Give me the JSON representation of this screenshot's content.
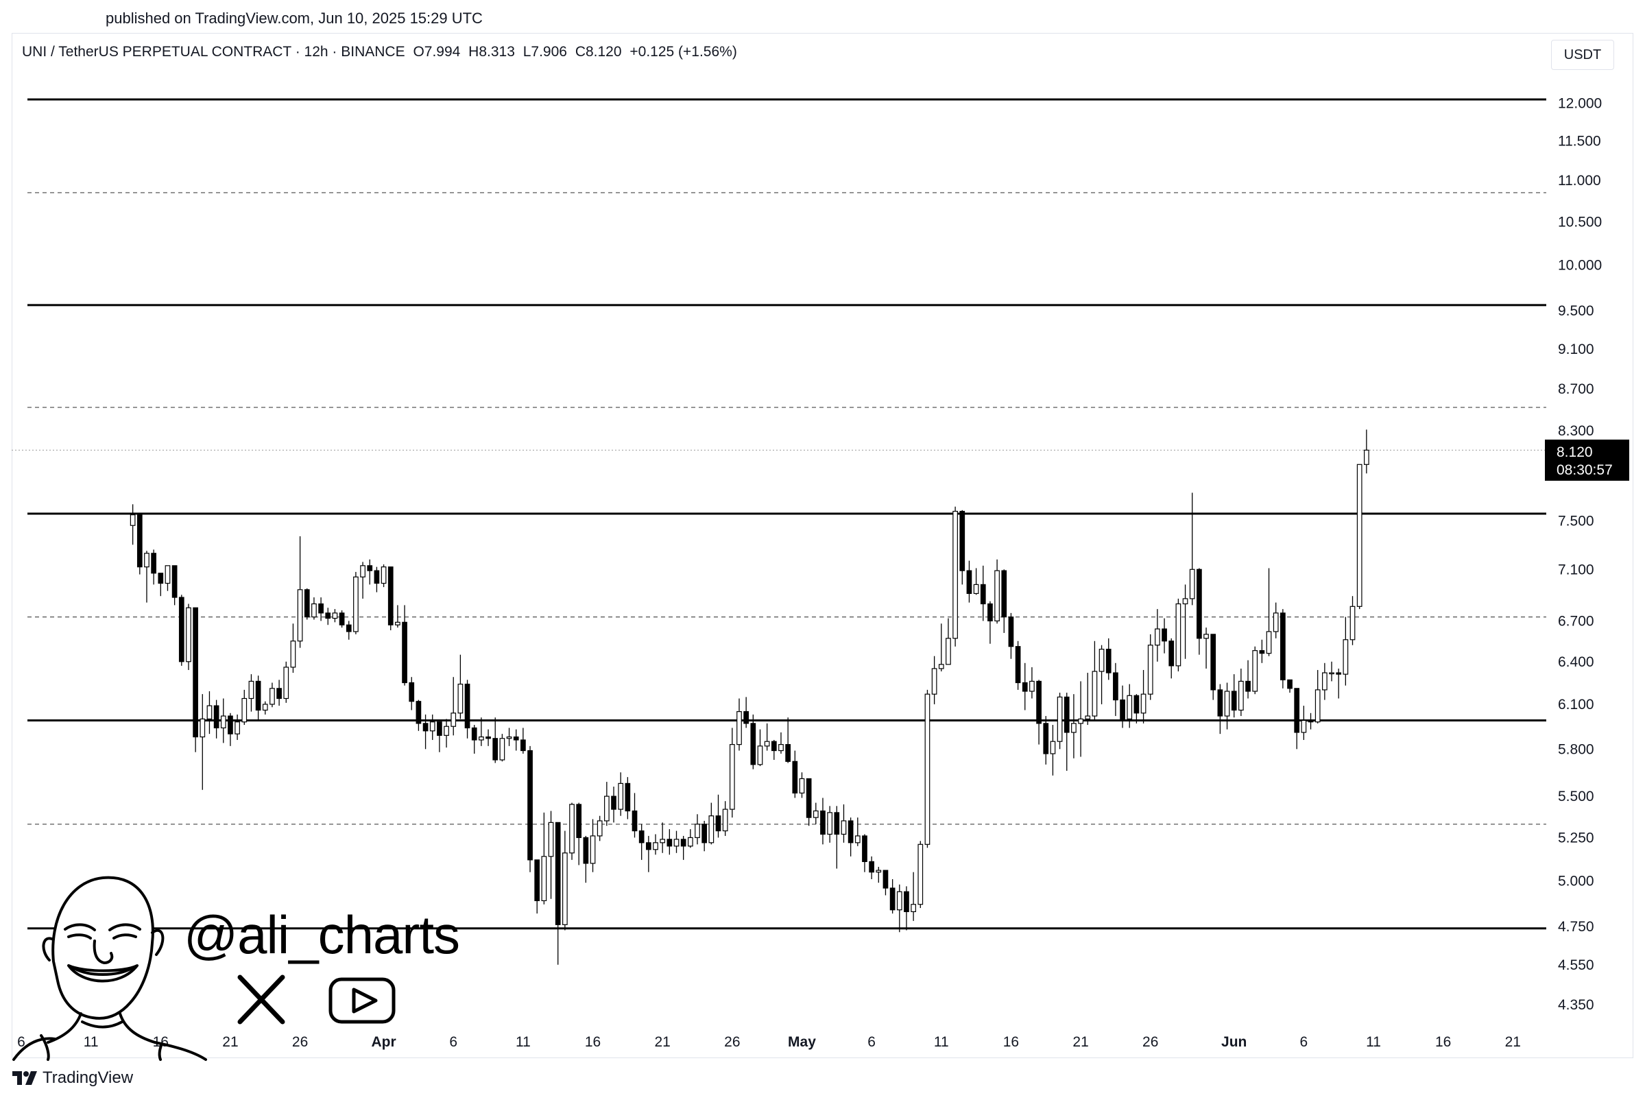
{
  "published": "published on TradingView.com, Jun 10, 2025 15:29 UTC",
  "legend": {
    "symbol": "UNI / TetherUS PERPETUAL CONTRACT · 12h · BINANCE",
    "open": "O7.994",
    "high": "H8.313",
    "low": "L7.906",
    "close": "C8.120",
    "change": "+0.125 (+1.56%)"
  },
  "currency": "USDT",
  "price_label": {
    "price": "8.120",
    "countdown": "08:30:57"
  },
  "watermark": {
    "handle": "@ali_charts",
    "icons": [
      "x-logo-icon",
      "youtube-icon"
    ]
  },
  "footer": {
    "brand": "TradingView",
    "icon": "tradingview-logo-icon"
  },
  "colors": {
    "line": "#000000",
    "background": "#ffffff",
    "grid_dashed": "#777777"
  },
  "chart_data": {
    "type": "candlestick",
    "y_ticks": [
      "12.000",
      "11.500",
      "11.000",
      "10.500",
      "10.000",
      "9.500",
      "9.100",
      "8.700",
      "8.300",
      "7.500",
      "7.100",
      "6.700",
      "6.400",
      "6.100",
      "5.800",
      "5.500",
      "5.250",
      "5.000",
      "4.750",
      "4.550",
      "4.350"
    ],
    "y_scale": "log",
    "x_ticks": [
      {
        "label": "6",
        "bold": false
      },
      {
        "label": "11",
        "bold": false
      },
      {
        "label": "16",
        "bold": false
      },
      {
        "label": "21",
        "bold": false
      },
      {
        "label": "26",
        "bold": false
      },
      {
        "label": "Apr",
        "bold": true
      },
      {
        "label": "6",
        "bold": false
      },
      {
        "label": "11",
        "bold": false
      },
      {
        "label": "16",
        "bold": false
      },
      {
        "label": "21",
        "bold": false
      },
      {
        "label": "26",
        "bold": false
      },
      {
        "label": "May",
        "bold": true
      },
      {
        "label": "6",
        "bold": false
      },
      {
        "label": "11",
        "bold": false
      },
      {
        "label": "16",
        "bold": false
      },
      {
        "label": "21",
        "bold": false
      },
      {
        "label": "26",
        "bold": false
      },
      {
        "label": "Jun",
        "bold": true
      },
      {
        "label": "6",
        "bold": false
      },
      {
        "label": "11",
        "bold": false
      },
      {
        "label": "16",
        "bold": false
      },
      {
        "label": "21",
        "bold": false
      }
    ],
    "first_day": "2025-03-06",
    "last_candle": "2025-06-10 12:00",
    "horizontal_levels": [
      {
        "price": 12.05,
        "style": "solid"
      },
      {
        "price": 10.85,
        "style": "dashed"
      },
      {
        "price": 9.56,
        "style": "solid"
      },
      {
        "price": 8.52,
        "style": "dashed"
      },
      {
        "price": 8.12,
        "style": "dotted"
      },
      {
        "price": 7.56,
        "style": "solid"
      },
      {
        "price": 6.73,
        "style": "dashed"
      },
      {
        "price": 5.99,
        "style": "solid"
      },
      {
        "price": 5.33,
        "style": "dashed"
      },
      {
        "price": 4.74,
        "style": "solid"
      }
    ],
    "candles": [
      [
        7.46,
        7.55,
        7.64,
        7.3
      ],
      [
        7.55,
        7.12,
        7.55,
        7.06
      ],
      [
        7.12,
        7.23,
        7.25,
        6.84
      ],
      [
        7.23,
        7.07,
        7.26,
        6.98
      ],
      [
        7.07,
        6.99,
        7.07,
        6.89
      ],
      [
        6.99,
        7.13,
        7.13,
        6.93
      ],
      [
        7.13,
        6.88,
        7.13,
        6.82
      ],
      [
        6.88,
        6.4,
        6.9,
        6.37
      ],
      [
        6.4,
        6.8,
        6.83,
        6.34
      ],
      [
        6.8,
        5.88,
        6.8,
        5.78
      ],
      [
        5.88,
        6.0,
        6.17,
        5.54
      ],
      [
        6.0,
        6.09,
        6.19,
        5.9
      ],
      [
        6.09,
        5.94,
        6.13,
        5.87
      ],
      [
        5.94,
        6.02,
        6.14,
        5.84
      ],
      [
        6.02,
        5.9,
        6.04,
        5.82
      ],
      [
        5.9,
        5.98,
        6.03,
        5.86
      ],
      [
        5.98,
        6.14,
        6.2,
        5.96
      ],
      [
        6.14,
        6.26,
        6.31,
        6.05
      ],
      [
        6.26,
        6.06,
        6.3,
        5.99
      ],
      [
        6.06,
        6.1,
        6.12,
        6.03
      ],
      [
        6.1,
        6.21,
        6.25,
        6.08
      ],
      [
        6.21,
        6.14,
        6.27,
        6.09
      ],
      [
        6.14,
        6.36,
        6.4,
        6.11
      ],
      [
        6.36,
        6.55,
        6.68,
        6.32
      ],
      [
        6.55,
        6.94,
        7.37,
        6.5
      ],
      [
        6.94,
        6.73,
        6.95,
        6.71
      ],
      [
        6.73,
        6.83,
        6.88,
        6.71
      ],
      [
        6.83,
        6.76,
        6.88,
        6.7
      ],
      [
        6.76,
        6.72,
        6.8,
        6.67
      ],
      [
        6.72,
        6.76,
        6.79,
        6.69
      ],
      [
        6.76,
        6.67,
        6.78,
        6.65
      ],
      [
        6.67,
        6.62,
        6.7,
        6.56
      ],
      [
        6.62,
        7.04,
        7.08,
        6.6
      ],
      [
        7.04,
        7.13,
        7.16,
        6.87
      ],
      [
        7.13,
        7.09,
        7.18,
        6.98
      ],
      [
        7.09,
        6.99,
        7.12,
        6.92
      ],
      [
        6.99,
        7.12,
        7.14,
        6.96
      ],
      [
        7.12,
        6.67,
        7.12,
        6.63
      ],
      [
        6.67,
        6.69,
        6.82,
        6.65
      ],
      [
        6.69,
        6.25,
        6.82,
        6.23
      ],
      [
        6.25,
        6.12,
        6.29,
        6.06
      ],
      [
        6.12,
        5.97,
        6.13,
        5.92
      ],
      [
        5.97,
        5.92,
        6.03,
        5.8
      ],
      [
        5.92,
        5.98,
        6.03,
        5.86
      ],
      [
        5.98,
        5.89,
        5.98,
        5.78
      ],
      [
        5.89,
        5.95,
        6.0,
        5.81
      ],
      [
        5.95,
        6.04,
        6.29,
        5.89
      ],
      [
        6.04,
        6.24,
        6.45,
        6.0
      ],
      [
        6.24,
        5.94,
        6.27,
        5.87
      ],
      [
        5.94,
        5.86,
        5.96,
        5.77
      ],
      [
        5.86,
        5.88,
        6.01,
        5.82
      ],
      [
        5.88,
        5.87,
        5.93,
        5.82
      ],
      [
        5.87,
        5.73,
        6.01,
        5.71
      ],
      [
        5.73,
        5.87,
        5.9,
        5.72
      ],
      [
        5.87,
        5.88,
        5.94,
        5.82
      ],
      [
        5.88,
        5.86,
        5.93,
        5.79
      ],
      [
        5.86,
        5.79,
        5.94,
        5.77
      ],
      [
        5.79,
        5.12,
        5.82,
        5.05
      ],
      [
        5.12,
        4.89,
        5.12,
        4.82
      ],
      [
        4.89,
        5.14,
        5.4,
        4.87
      ],
      [
        5.14,
        5.34,
        5.41,
        4.9
      ],
      [
        5.34,
        4.76,
        5.34,
        4.55
      ],
      [
        4.76,
        5.16,
        5.29,
        4.73
      ],
      [
        5.16,
        5.45,
        5.46,
        5.12
      ],
      [
        5.45,
        5.25,
        5.46,
        5.09
      ],
      [
        5.25,
        5.1,
        5.26,
        4.99
      ],
      [
        5.1,
        5.26,
        5.36,
        5.05
      ],
      [
        5.26,
        5.35,
        5.38,
        5.23
      ],
      [
        5.35,
        5.5,
        5.59,
        5.32
      ],
      [
        5.5,
        5.42,
        5.56,
        5.34
      ],
      [
        5.42,
        5.58,
        5.65,
        5.38
      ],
      [
        5.58,
        5.41,
        5.62,
        5.36
      ],
      [
        5.41,
        5.29,
        5.52,
        5.25
      ],
      [
        5.29,
        5.22,
        5.33,
        5.12
      ],
      [
        5.22,
        5.18,
        5.26,
        5.05
      ],
      [
        5.18,
        5.22,
        5.27,
        5.15
      ],
      [
        5.22,
        5.24,
        5.34,
        5.16
      ],
      [
        5.24,
        5.2,
        5.3,
        5.15
      ],
      [
        5.2,
        5.24,
        5.29,
        5.16
      ],
      [
        5.24,
        5.2,
        5.26,
        5.12
      ],
      [
        5.2,
        5.25,
        5.3,
        5.19
      ],
      [
        5.25,
        5.33,
        5.39,
        5.21
      ],
      [
        5.33,
        5.22,
        5.35,
        5.17
      ],
      [
        5.22,
        5.38,
        5.46,
        5.21
      ],
      [
        5.38,
        5.29,
        5.51,
        5.25
      ],
      [
        5.29,
        5.42,
        5.47,
        5.26
      ],
      [
        5.42,
        5.83,
        5.94,
        5.37
      ],
      [
        5.83,
        6.05,
        6.14,
        5.79
      ],
      [
        6.05,
        5.97,
        6.15,
        5.94
      ],
      [
        5.97,
        5.7,
        6.03,
        5.67
      ],
      [
        5.7,
        5.82,
        5.93,
        5.69
      ],
      [
        5.82,
        5.85,
        5.97,
        5.79
      ],
      [
        5.85,
        5.79,
        5.86,
        5.73
      ],
      [
        5.79,
        5.83,
        5.91,
        5.77
      ],
      [
        5.83,
        5.72,
        6.01,
        5.71
      ],
      [
        5.72,
        5.52,
        5.79,
        5.49
      ],
      [
        5.52,
        5.61,
        5.65,
        5.49
      ],
      [
        5.61,
        5.37,
        5.61,
        5.32
      ],
      [
        5.37,
        5.41,
        5.46,
        5.33
      ],
      [
        5.41,
        5.27,
        5.49,
        5.21
      ],
      [
        5.27,
        5.4,
        5.44,
        5.22
      ],
      [
        5.4,
        5.27,
        5.44,
        5.07
      ],
      [
        5.27,
        5.35,
        5.45,
        5.22
      ],
      [
        5.35,
        5.22,
        5.37,
        5.14
      ],
      [
        5.22,
        5.26,
        5.37,
        5.2
      ],
      [
        5.26,
        5.11,
        5.27,
        5.05
      ],
      [
        5.11,
        5.05,
        5.14,
        5.01
      ],
      [
        5.05,
        5.06,
        5.08,
        4.99
      ],
      [
        5.06,
        4.96,
        5.06,
        4.92
      ],
      [
        4.96,
        4.84,
        5.01,
        4.82
      ],
      [
        4.84,
        4.94,
        4.98,
        4.72
      ],
      [
        4.94,
        4.83,
        4.97,
        4.73
      ],
      [
        4.83,
        4.87,
        5.05,
        4.78
      ],
      [
        4.87,
        5.21,
        5.23,
        4.85
      ],
      [
        5.21,
        6.17,
        6.2,
        5.19
      ],
      [
        6.17,
        6.35,
        6.44,
        6.1
      ],
      [
        6.35,
        6.38,
        6.68,
        6.33
      ],
      [
        6.38,
        6.57,
        6.72,
        6.38
      ],
      [
        6.57,
        7.58,
        7.62,
        6.51
      ],
      [
        7.58,
        7.09,
        7.59,
        6.98
      ],
      [
        7.09,
        6.91,
        7.17,
        6.84
      ],
      [
        6.91,
        6.98,
        7.11,
        6.9
      ],
      [
        6.98,
        6.83,
        7.13,
        6.7
      ],
      [
        6.83,
        6.7,
        6.85,
        6.53
      ],
      [
        6.7,
        7.09,
        7.18,
        6.68
      ],
      [
        7.09,
        6.73,
        7.1,
        6.61
      ],
      [
        6.73,
        6.51,
        6.76,
        6.42
      ],
      [
        6.51,
        6.25,
        6.55,
        6.2
      ],
      [
        6.25,
        6.19,
        6.39,
        6.06
      ],
      [
        6.19,
        6.26,
        6.36,
        6.14
      ],
      [
        6.26,
        5.97,
        6.27,
        5.83
      ],
      [
        5.97,
        5.77,
        6.02,
        5.7
      ],
      [
        5.77,
        5.85,
        5.96,
        5.63
      ],
      [
        5.85,
        6.15,
        6.18,
        5.8
      ],
      [
        6.15,
        5.91,
        6.18,
        5.66
      ],
      [
        5.91,
        5.97,
        6.17,
        5.74
      ],
      [
        5.97,
        6.0,
        6.26,
        5.75
      ],
      [
        6.0,
        6.02,
        6.32,
        5.96
      ],
      [
        6.02,
        6.33,
        6.55,
        5.99
      ],
      [
        6.33,
        6.49,
        6.52,
        6.1
      ],
      [
        6.49,
        6.32,
        6.57,
        6.27
      ],
      [
        6.32,
        6.13,
        6.39,
        6.02
      ],
      [
        6.13,
        6.0,
        6.23,
        5.94
      ],
      [
        6.0,
        6.16,
        6.24,
        5.94
      ],
      [
        6.16,
        6.04,
        6.17,
        5.97
      ],
      [
        6.04,
        6.17,
        6.34,
        5.97
      ],
      [
        6.17,
        6.52,
        6.6,
        6.13
      ],
      [
        6.52,
        6.64,
        6.79,
        6.4
      ],
      [
        6.64,
        6.55,
        6.72,
        6.46
      ],
      [
        6.55,
        6.37,
        6.57,
        6.28
      ],
      [
        6.37,
        6.83,
        6.87,
        6.33
      ],
      [
        6.83,
        6.87,
        6.98,
        6.42
      ],
      [
        6.87,
        7.1,
        7.74,
        6.82
      ],
      [
        7.1,
        6.57,
        7.11,
        6.45
      ],
      [
        6.57,
        6.6,
        6.65,
        6.35
      ],
      [
        6.6,
        6.2,
        6.6,
        6.13
      ],
      [
        6.2,
        6.02,
        6.24,
        5.9
      ],
      [
        6.02,
        6.19,
        6.25,
        5.93
      ],
      [
        6.19,
        6.06,
        6.31,
        6.01
      ],
      [
        6.06,
        6.26,
        6.35,
        6.02
      ],
      [
        6.26,
        6.19,
        6.41,
        6.14
      ],
      [
        6.19,
        6.48,
        6.51,
        6.17
      ],
      [
        6.48,
        6.46,
        6.56,
        6.39
      ],
      [
        6.46,
        6.62,
        7.11,
        6.44
      ],
      [
        6.62,
        6.76,
        6.84,
        6.57
      ],
      [
        6.76,
        6.27,
        6.79,
        6.21
      ],
      [
        6.27,
        6.21,
        6.27,
        6.18
      ],
      [
        6.21,
        5.91,
        6.21,
        5.8
      ],
      [
        5.91,
        5.99,
        6.09,
        5.86
      ],
      [
        5.99,
        5.98,
        6.04,
        5.93
      ],
      [
        5.98,
        6.2,
        6.34,
        5.97
      ],
      [
        6.2,
        6.32,
        6.39,
        6.13
      ],
      [
        6.32,
        6.32,
        6.4,
        6.26
      ],
      [
        6.32,
        6.31,
        6.35,
        6.14
      ],
      [
        6.31,
        6.56,
        6.73,
        6.23
      ],
      [
        6.56,
        6.81,
        6.89,
        6.52
      ],
      [
        6.81,
        7.99,
        7.99,
        6.79
      ],
      [
        7.99,
        8.12,
        8.31,
        7.91
      ]
    ]
  }
}
